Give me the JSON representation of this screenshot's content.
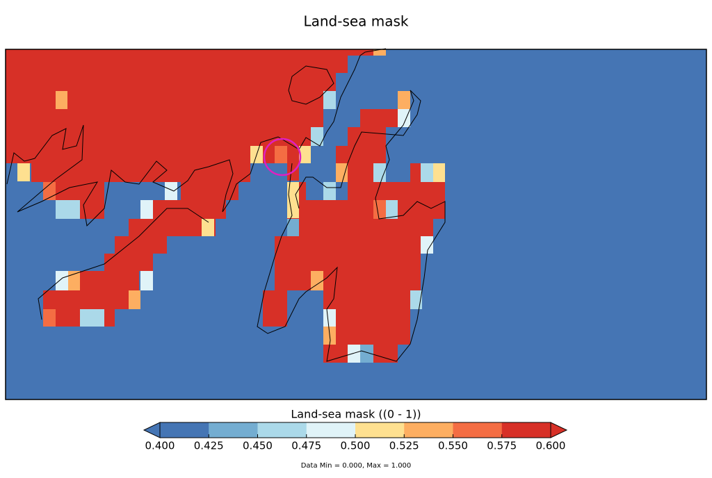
{
  "title": "Land-sea mask",
  "colorbar": {
    "label": "Land-sea mask ((0 - 1))",
    "range": [
      0.4,
      0.6
    ],
    "ticks": [
      {
        "value": 0.4,
        "label": "0.400"
      },
      {
        "value": 0.425,
        "label": "0.425"
      },
      {
        "value": 0.45,
        "label": "0.450"
      },
      {
        "value": 0.475,
        "label": "0.475"
      },
      {
        "value": 0.5,
        "label": "0.500"
      },
      {
        "value": 0.525,
        "label": "0.525"
      },
      {
        "value": 0.55,
        "label": "0.550"
      },
      {
        "value": 0.575,
        "label": "0.575"
      },
      {
        "value": 0.6,
        "label": "0.600"
      }
    ],
    "colors": [
      "#4575b4",
      "#74add1",
      "#abd9e9",
      "#e0f3f8",
      "#fee090",
      "#fdae61",
      "#f46d43",
      "#d73027"
    ],
    "extend": "both"
  },
  "footnote": "Data Min = 0.000, Max = 1.000"
}
